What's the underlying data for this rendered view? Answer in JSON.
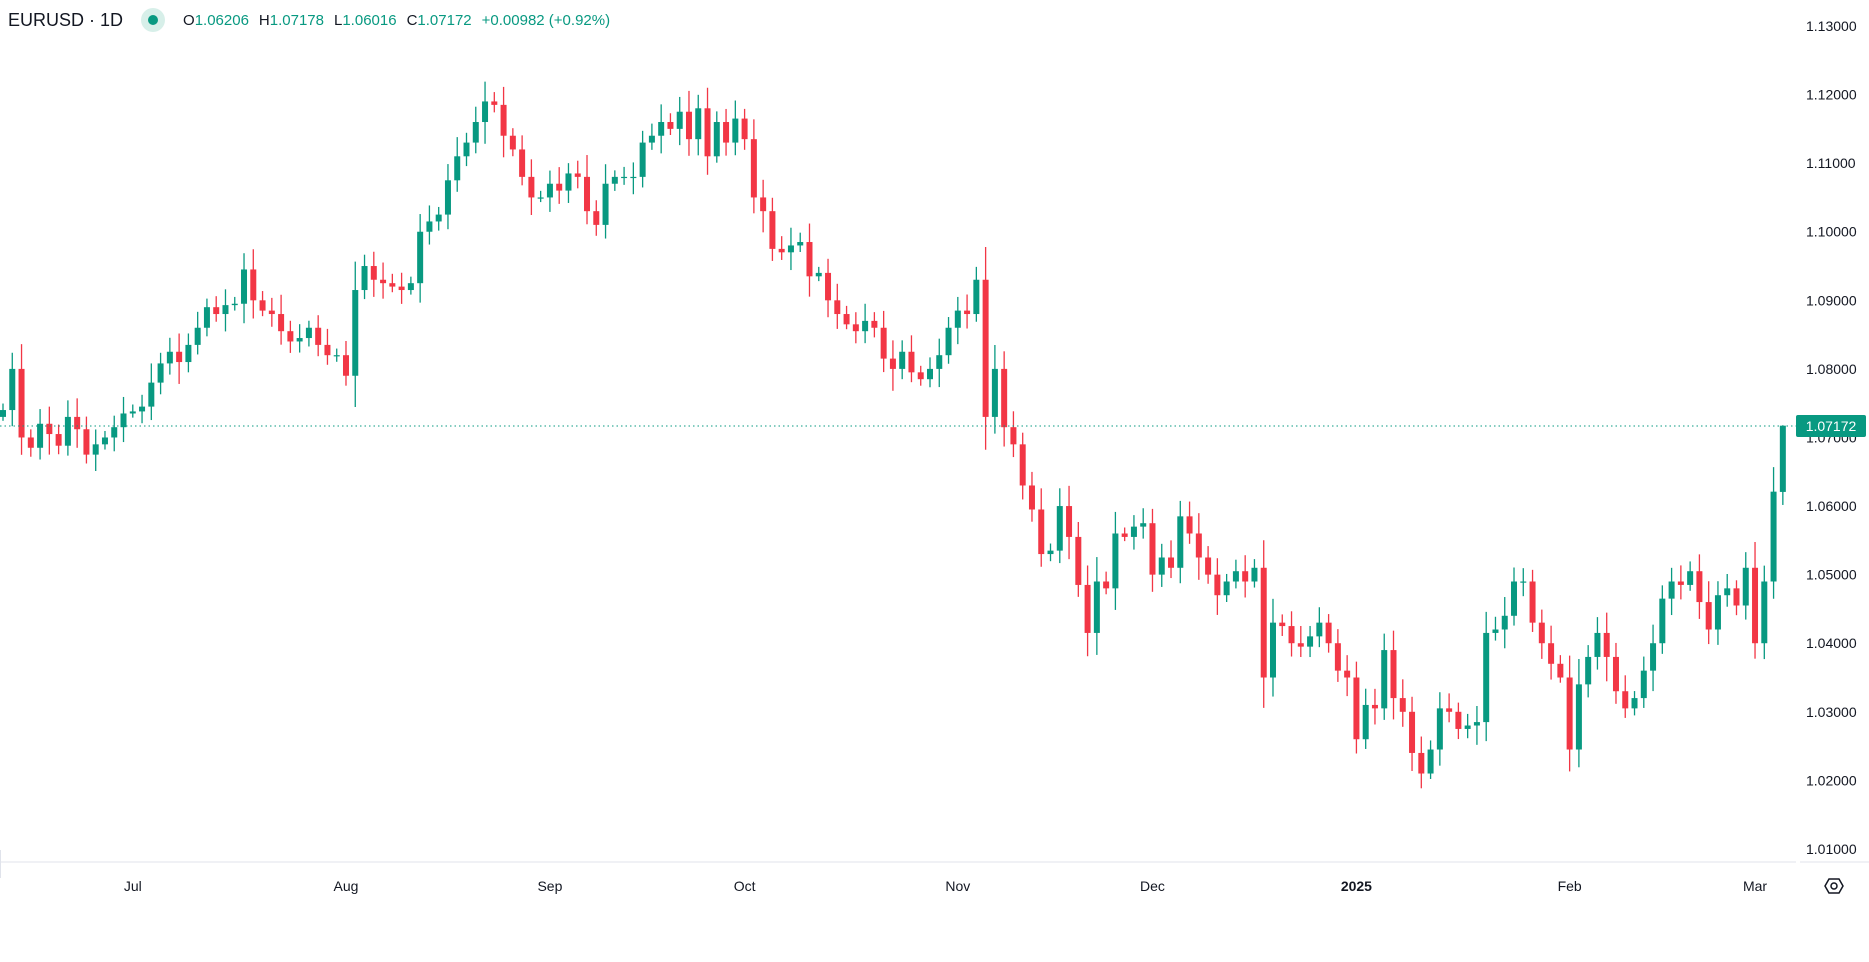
{
  "header": {
    "symbol": "EURUSD · 1D",
    "status_color": "#089981",
    "open_key": "O",
    "open": "1.06206",
    "high_key": "H",
    "high": "1.07178",
    "low_key": "L",
    "low": "1.06016",
    "close_key": "C",
    "close": "1.07172",
    "change": "+0.00982 (+0.92%)"
  },
  "colors": {
    "up": "#089981",
    "down": "#F23645"
  },
  "chart_data": {
    "type": "candlestick",
    "symbol": "EURUSD",
    "interval": "1D",
    "ylim": [
      1.005,
      1.1325
    ],
    "y_ticks": [
      "1.13000",
      "1.12000",
      "1.11000",
      "1.10000",
      "1.09000",
      "1.08000",
      "1.07000",
      "1.06000",
      "1.05000",
      "1.04000",
      "1.03000",
      "1.02000",
      "1.01000"
    ],
    "x_ticks": [
      {
        "label": "Jul",
        "index": 14,
        "bold": false
      },
      {
        "label": "Aug",
        "index": 37,
        "bold": false
      },
      {
        "label": "Sep",
        "index": 59,
        "bold": false
      },
      {
        "label": "Oct",
        "index": 80,
        "bold": false
      },
      {
        "label": "Nov",
        "index": 103,
        "bold": false
      },
      {
        "label": "Dec",
        "index": 124,
        "bold": false
      },
      {
        "label": "2025",
        "index": 146,
        "bold": true
      },
      {
        "label": "Feb",
        "index": 169,
        "bold": false
      },
      {
        "label": "Mar",
        "index": 189,
        "bold": false
      }
    ],
    "last_price": "1.07172",
    "first_open": 1.073,
    "closes": [
      1.074,
      1.08,
      1.07,
      1.0685,
      1.072,
      1.0705,
      1.0688,
      1.073,
      1.0712,
      1.0675,
      1.069,
      1.07,
      1.0715,
      1.0735,
      1.0738,
      1.0745,
      1.078,
      1.0808,
      1.0825,
      1.081,
      1.0835,
      1.086,
      1.089,
      1.088,
      1.0893,
      1.0895,
      1.0945,
      1.09,
      1.0885,
      1.088,
      1.0855,
      1.084,
      1.0845,
      1.086,
      1.0835,
      1.082,
      1.082,
      1.079,
      1.0915,
      1.095,
      1.093,
      1.0925,
      1.092,
      1.0915,
      1.0925,
      1.1,
      1.1015,
      1.1025,
      1.1075,
      1.111,
      1.113,
      1.116,
      1.119,
      1.1185,
      1.114,
      1.112,
      1.108,
      1.105,
      1.105,
      1.107,
      1.106,
      1.1085,
      1.108,
      1.103,
      1.101,
      1.107,
      1.108,
      1.108,
      1.108,
      1.113,
      1.114,
      1.116,
      1.115,
      1.1175,
      1.1135,
      1.118,
      1.111,
      1.116,
      1.113,
      1.1165,
      1.1135,
      1.105,
      1.103,
      1.0975,
      1.097,
      1.098,
      1.0985,
      1.0935,
      1.094,
      1.09,
      1.088,
      1.0865,
      1.0855,
      1.087,
      1.086,
      1.0815,
      1.08,
      1.0825,
      1.0795,
      1.0785,
      1.08,
      1.082,
      1.086,
      1.0885,
      1.088,
      1.093,
      1.073,
      1.08,
      1.0715,
      1.069,
      1.063,
      1.0595,
      1.053,
      1.0535,
      1.06,
      1.0555,
      1.0485,
      1.0415,
      1.049,
      1.048,
      1.056,
      1.0555,
      1.057,
      1.0575,
      1.05,
      1.0525,
      1.051,
      1.0585,
      1.056,
      1.0525,
      1.05,
      1.047,
      1.049,
      1.0505,
      1.049,
      1.051,
      1.035,
      1.043,
      1.0425,
      1.04,
      1.0395,
      1.041,
      1.043,
      1.04,
      1.036,
      1.035,
      1.026,
      1.031,
      1.0305,
      1.039,
      1.032,
      1.03,
      1.024,
      1.021,
      1.0245,
      1.0305,
      1.03,
      1.0275,
      1.028,
      1.0285,
      1.0415,
      1.042,
      1.044,
      1.049,
      1.049,
      1.043,
      1.04,
      1.037,
      1.035,
      1.0245,
      1.034,
      1.038,
      1.0415,
      1.038,
      1.033,
      1.0305,
      1.032,
      1.036,
      1.04,
      1.0465,
      1.049,
      1.0485,
      1.0505,
      1.046,
      1.042,
      1.047,
      1.048,
      1.0455,
      1.051,
      1.04,
      1.049,
      1.0621,
      1.0717
    ],
    "last_candle": {
      "open": 1.06206,
      "high": 1.07178,
      "low": 1.06016,
      "close": 1.07172
    }
  },
  "settings_icon": "gear-hexagon-icon"
}
